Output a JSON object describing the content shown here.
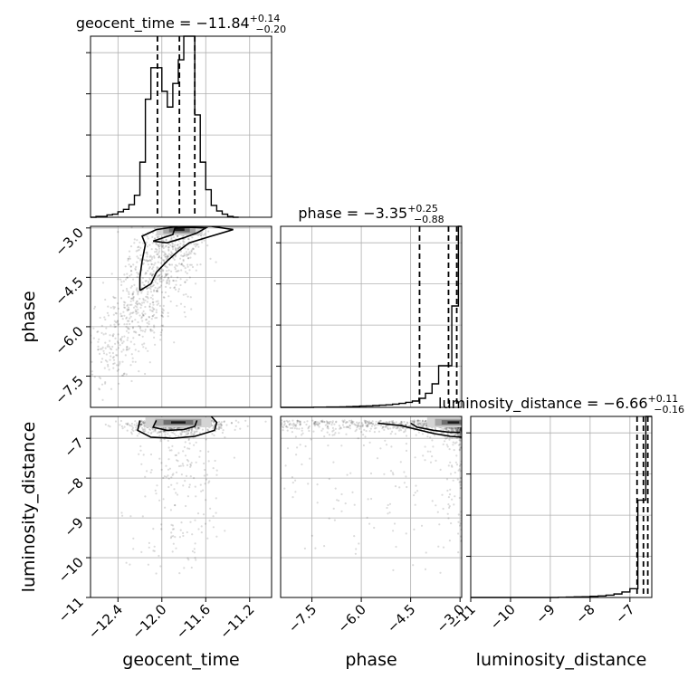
{
  "chart_data": {
    "type": "corner",
    "parameters": [
      {
        "name": "geocent_time",
        "label": "geocent_time",
        "title_main": "geocent_time = −11.84",
        "title_sup": "+0.14",
        "title_sub": "−0.20",
        "median": -11.84,
        "q_low": -12.04,
        "q_high": -11.7,
        "range": [
          -12.65,
          -11.0
        ],
        "ticks": [
          -12.4,
          -12.0,
          -11.6,
          -11.2
        ],
        "tick_labels": [
          "−12.4",
          "−12.0",
          "−11.6",
          "−11.2"
        ],
        "hist": {
          "edges": [
            -12.65,
            -12.6,
            -12.55,
            -12.5,
            -12.45,
            -12.4,
            -12.35,
            -12.3,
            -12.25,
            -12.2,
            -12.15,
            -12.1,
            -12.05,
            -12.0,
            -11.95,
            -11.9,
            -11.85,
            -11.8,
            -11.75,
            -11.7,
            -11.65,
            -11.6,
            -11.55,
            -11.5,
            -11.45,
            -11.4,
            -11.35,
            -11.3
          ],
          "counts": [
            0,
            1,
            1,
            3,
            4,
            7,
            10,
            16,
            28,
            70,
            150,
            190,
            190,
            160,
            140,
            170,
            200,
            230,
            230,
            130,
            70,
            35,
            15,
            8,
            4,
            1,
            0
          ]
        }
      },
      {
        "name": "phase",
        "label": "phase",
        "title_main": "phase = −3.35",
        "title_sup": "+0.25",
        "title_sub": "−0.88",
        "median": -3.35,
        "q_low": -4.23,
        "q_high": -3.1,
        "range": [
          -8.45,
          -2.95
        ],
        "ticks": [
          -7.5,
          -6.0,
          -4.5,
          -3.0
        ],
        "tick_labels": [
          "−7.5",
          "−6.0",
          "−4.5",
          "−3.0"
        ],
        "hist": {
          "edges": [
            -8.45,
            -8.25,
            -8.05,
            -7.85,
            -7.65,
            -7.45,
            -7.25,
            -7.05,
            -6.85,
            -6.65,
            -6.45,
            -6.25,
            -6.05,
            -5.85,
            -5.65,
            -5.45,
            -5.25,
            -5.05,
            -4.85,
            -4.65,
            -4.45,
            -4.25,
            -4.05,
            -3.85,
            -3.65,
            -3.45,
            -3.25,
            -3.05,
            -2.95
          ],
          "counts": [
            0,
            0,
            0,
            0,
            0,
            1,
            1,
            2,
            2,
            3,
            4,
            5,
            7,
            8,
            10,
            12,
            14,
            18,
            22,
            28,
            35,
            50,
            78,
            130,
            230,
            230,
            560,
            1000
          ]
        }
      },
      {
        "name": "luminosity_distance",
        "label": "luminosity_distance",
        "title_main": "luminosity_distance = −6.66",
        "title_sup": "+0.11",
        "title_sub": "−0.16",
        "median": -6.66,
        "q_low": -6.82,
        "q_high": -6.55,
        "range": [
          -11.0,
          -6.45
        ],
        "ticks": [
          -11,
          -10,
          -9,
          -8,
          -7
        ],
        "tick_labels": [
          "−11",
          "−10",
          "−9",
          "−8",
          "−7"
        ],
        "hist": {
          "edges": [
            -11.0,
            -10.8,
            -10.6,
            -10.4,
            -10.2,
            -10.0,
            -9.8,
            -9.6,
            -9.4,
            -9.2,
            -9.0,
            -8.8,
            -8.6,
            -8.4,
            -8.2,
            -8.0,
            -7.8,
            -7.6,
            -7.4,
            -7.2,
            -7.0,
            -6.8,
            -6.6,
            -6.45
          ],
          "counts": [
            0,
            0,
            0,
            0,
            0,
            0,
            0,
            0,
            0,
            0,
            0,
            1,
            2,
            3,
            4,
            6,
            8,
            12,
            18,
            28,
            45,
            500,
            930
          ]
        }
      }
    ],
    "pairs": [
      {
        "x_param": "geocent_time",
        "y_param": "phase",
        "contours": [
          [
            [
              -12.2,
              -4.9
            ],
            [
              -12.2,
              -4.5
            ],
            [
              -12.18,
              -4.0
            ],
            [
              -12.15,
              -3.5
            ],
            [
              -12.18,
              -3.25
            ],
            [
              -12.05,
              -3.05
            ],
            [
              -11.85,
              -2.95
            ],
            [
              -11.55,
              -2.95
            ],
            [
              -11.35,
              -3.05
            ],
            [
              -11.55,
              -3.25
            ],
            [
              -11.75,
              -3.45
            ],
            [
              -11.85,
              -3.7
            ],
            [
              -11.95,
              -4.0
            ],
            [
              -12.05,
              -4.35
            ],
            [
              -12.1,
              -4.7
            ],
            [
              -12.2,
              -4.9
            ]
          ],
          [
            [
              -12.08,
              -3.4
            ],
            [
              -11.9,
              -3.2
            ],
            [
              -11.88,
              -3.0
            ],
            [
              -11.75,
              -2.98
            ],
            [
              -11.6,
              -3.0
            ],
            [
              -11.68,
              -3.15
            ],
            [
              -11.8,
              -3.3
            ],
            [
              -11.95,
              -3.45
            ],
            [
              -12.08,
              -3.4
            ]
          ]
        ]
      },
      {
        "x_param": "geocent_time",
        "y_param": "luminosity_distance",
        "contours": [
          [
            [
              -12.2,
              -6.55
            ],
            [
              -12.22,
              -6.8
            ],
            [
              -12.1,
              -6.97
            ],
            [
              -11.9,
              -7.0
            ],
            [
              -11.7,
              -6.95
            ],
            [
              -11.52,
              -6.8
            ],
            [
              -11.5,
              -6.6
            ],
            [
              -11.55,
              -6.45
            ]
          ],
          [
            [
              -12.05,
              -6.55
            ],
            [
              -12.08,
              -6.72
            ],
            [
              -11.95,
              -6.8
            ],
            [
              -11.8,
              -6.78
            ],
            [
              -11.7,
              -6.7
            ],
            [
              -11.68,
              -6.55
            ]
          ]
        ]
      },
      {
        "x_param": "phase",
        "y_param": "luminosity_distance",
        "contours": [
          [
            [
              -5.5,
              -6.62
            ],
            [
              -4.8,
              -6.68
            ],
            [
              -4.2,
              -6.8
            ],
            [
              -3.8,
              -6.88
            ],
            [
              -3.3,
              -6.95
            ],
            [
              -2.95,
              -6.97
            ]
          ],
          [
            [
              -4.5,
              -6.62
            ],
            [
              -4.3,
              -6.72
            ],
            [
              -3.8,
              -6.8
            ],
            [
              -3.3,
              -6.85
            ],
            [
              -3.0,
              -6.85
            ]
          ]
        ]
      }
    ],
    "histogram_heights_ticks": 4
  }
}
